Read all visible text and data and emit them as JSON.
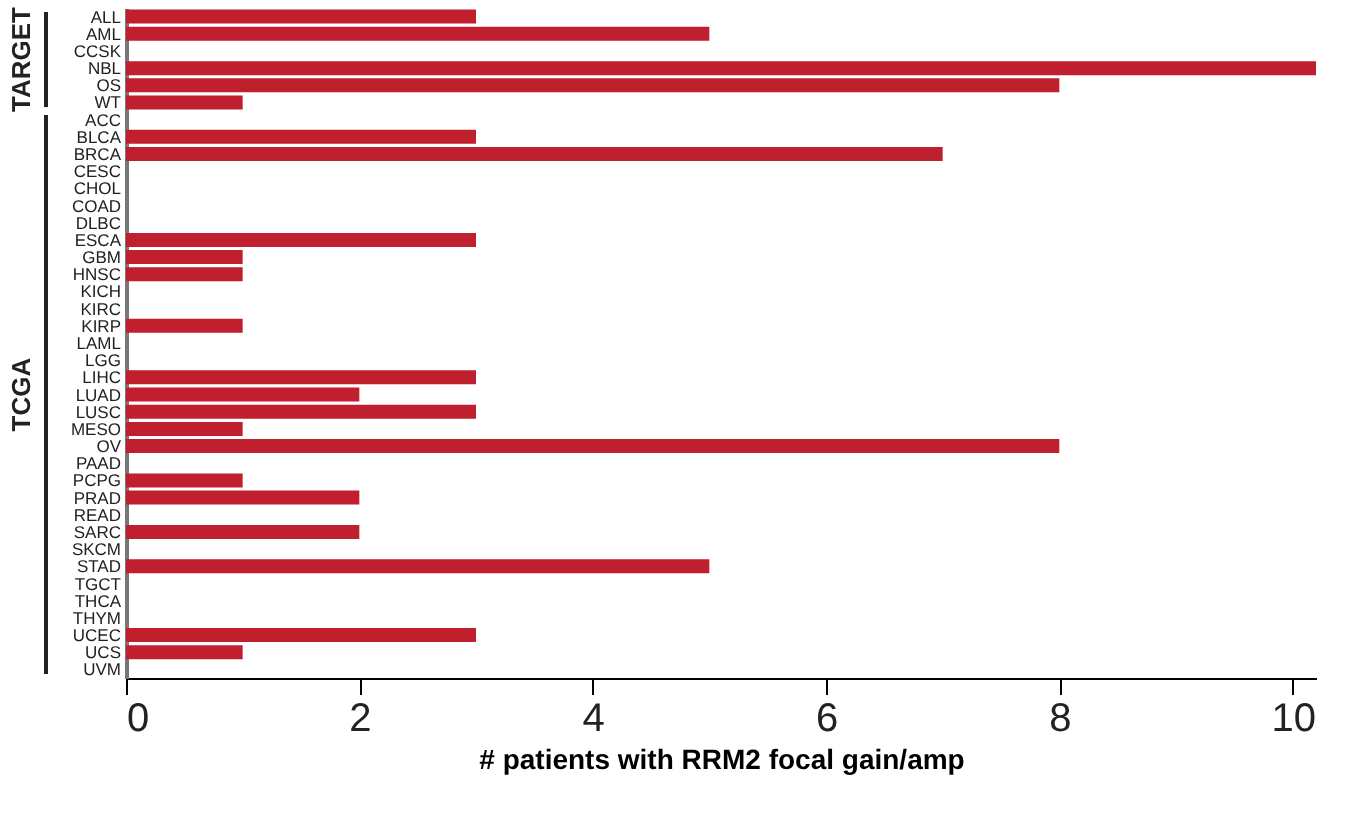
{
  "chart_data": {
    "type": "bar",
    "orientation": "horizontal",
    "xlabel": "# patients with RRM2 focal gain/amp",
    "color": "#c01f2e",
    "categories": [
      "ALL",
      "AML",
      "CCSK",
      "NBL",
      "OS",
      "WT",
      "ACC",
      "BLCA",
      "BRCA",
      "CESC",
      "CHOL",
      "COAD",
      "DLBC",
      "ESCA",
      "GBM",
      "HNSC",
      "KICH",
      "KIRC",
      "KIRP",
      "LAML",
      "LGG",
      "LIHC",
      "LUAD",
      "LUSC",
      "MESO",
      "OV",
      "PAAD",
      "PCPG",
      "PRAD",
      "READ",
      "SARC",
      "SKCM",
      "STAD",
      "TGCT",
      "THCA",
      "THYM",
      "UCEC",
      "UCS",
      "UVM"
    ],
    "values": [
      3,
      5,
      0,
      10.2,
      8,
      1,
      0,
      3,
      7,
      0,
      0,
      0,
      0,
      3,
      1,
      1,
      0,
      0,
      1,
      0,
      0,
      3,
      2,
      3,
      1,
      8,
      0,
      1,
      2,
      0,
      2,
      0,
      5,
      0,
      0,
      0,
      3,
      1,
      0
    ],
    "xlim": [
      0,
      10.2
    ],
    "xticks": [
      0,
      2,
      4,
      6,
      8,
      10
    ],
    "grid": false,
    "annotations": [
      "TARGET",
      "TCGA"
    ]
  }
}
